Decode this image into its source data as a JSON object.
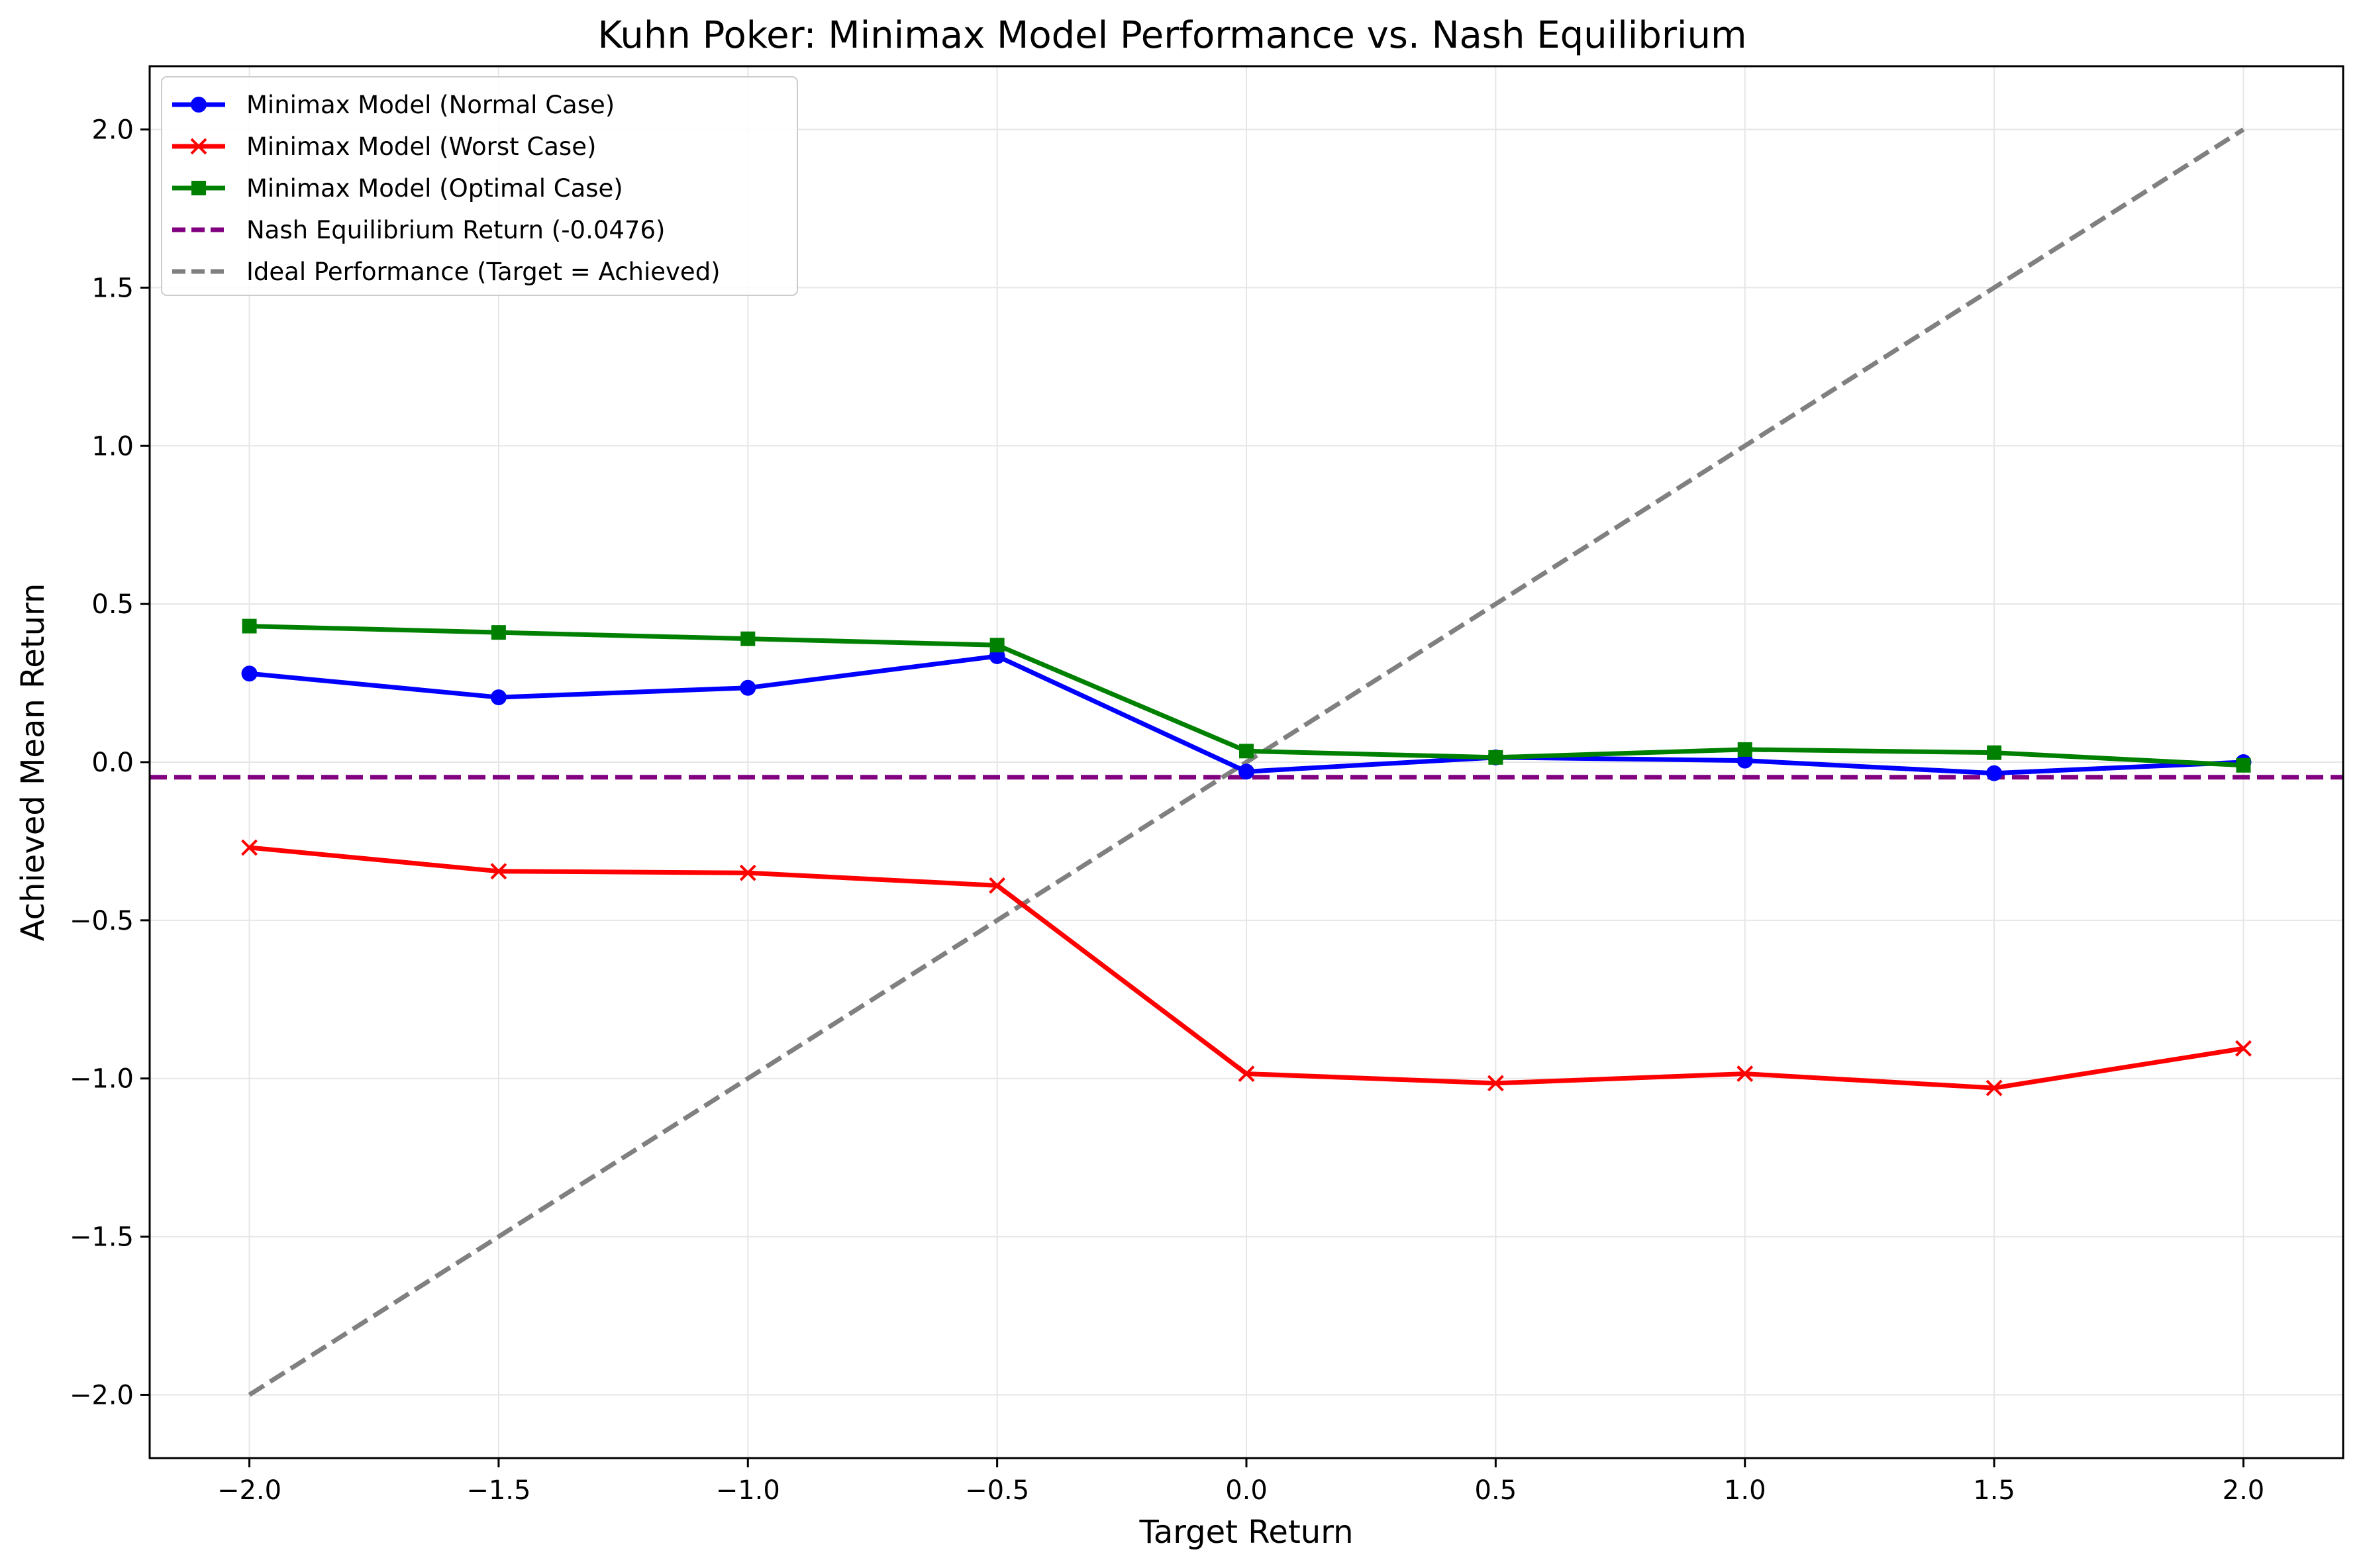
{
  "chart_data": {
    "type": "line",
    "title": "Kuhn Poker: Minimax Model Performance vs. Nash Equilibrium",
    "xlabel": "Target Return",
    "ylabel": "Achieved Mean Return",
    "xlim": [
      -2.2,
      2.2
    ],
    "ylim": [
      -2.2,
      2.2
    ],
    "xticks": [
      -2.0,
      -1.5,
      -1.0,
      -0.5,
      0.0,
      0.5,
      1.0,
      1.5,
      2.0
    ],
    "yticks": [
      -2.0,
      -1.5,
      -1.0,
      -0.5,
      0.0,
      0.5,
      1.0,
      1.5,
      2.0
    ],
    "xtick_labels": [
      "−2.0",
      "−1.5",
      "−1.0",
      "−0.5",
      "0.0",
      "0.5",
      "1.0",
      "1.5",
      "2.0"
    ],
    "ytick_labels": [
      "−2.0",
      "−1.5",
      "−1.0",
      "−0.5",
      "0.0",
      "0.5",
      "1.0",
      "1.5",
      "2.0"
    ],
    "grid": true,
    "legend_position": "top-left",
    "x": [
      -2.0,
      -1.5,
      -1.0,
      -0.5,
      0.0,
      0.5,
      1.0,
      1.5,
      2.0
    ],
    "series": [
      {
        "name": "Minimax Model (Normal Case)",
        "color": "#0000ff",
        "marker": "circle",
        "style": "solid",
        "values": [
          0.28,
          0.205,
          0.235,
          0.335,
          -0.03,
          0.015,
          0.005,
          -0.035,
          0.0
        ]
      },
      {
        "name": "Minimax Model (Worst Case)",
        "color": "#ff0000",
        "marker": "x",
        "style": "solid",
        "values": [
          -0.27,
          -0.345,
          -0.35,
          -0.39,
          -0.985,
          -1.015,
          -0.985,
          -1.03,
          -0.905
        ]
      },
      {
        "name": "Minimax Model (Optimal Case)",
        "color": "#008000",
        "marker": "square",
        "style": "solid",
        "values": [
          0.43,
          0.41,
          0.39,
          0.37,
          0.035,
          0.015,
          0.04,
          0.03,
          -0.01
        ]
      }
    ],
    "reference_lines": [
      {
        "name": "Nash Equilibrium Return (-0.0476)",
        "color": "#800080",
        "style": "dashed",
        "kind": "horizontal",
        "y": -0.0476
      },
      {
        "name": "Ideal Performance (Target = Achieved)",
        "color": "#808080",
        "style": "dashed",
        "kind": "diagonal",
        "x": [
          -2.0,
          2.0
        ],
        "y": [
          -2.0,
          2.0
        ]
      }
    ]
  }
}
